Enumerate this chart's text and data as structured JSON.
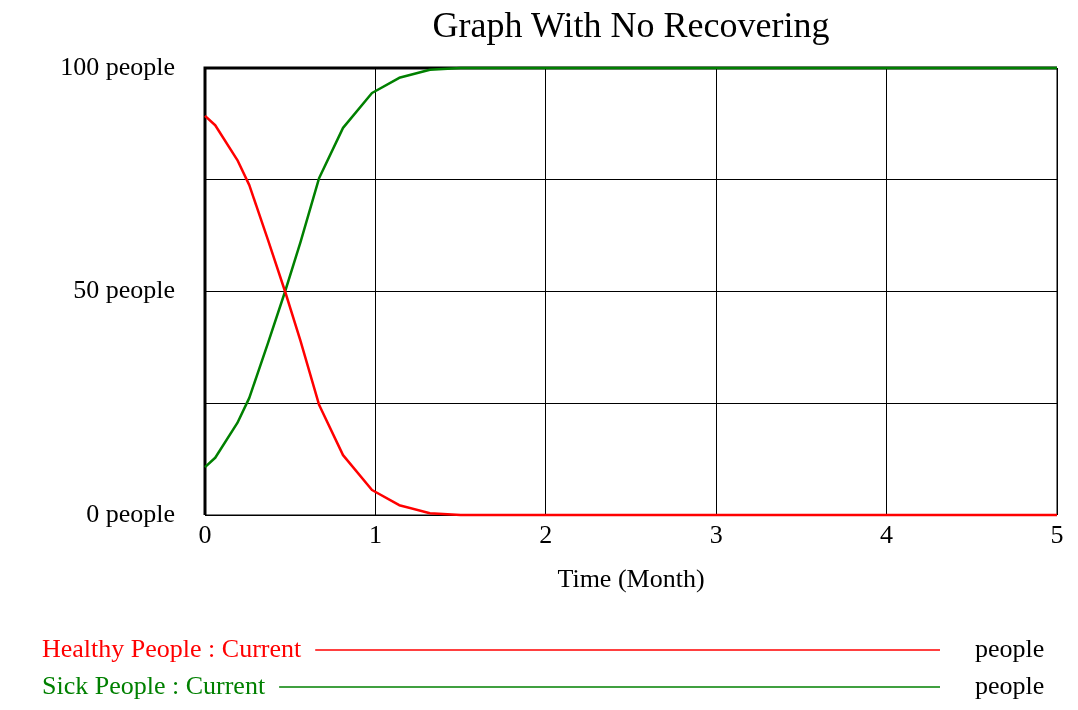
{
  "chart_data": {
    "type": "line",
    "title": "Graph With No Recovering",
    "xlabel": "Time (Month)",
    "x": [
      0,
      0.06,
      0.19,
      0.26,
      0.37,
      0.47,
      0.56,
      0.67,
      0.81,
      0.98,
      1.14,
      1.32,
      1.5,
      2,
      3,
      4,
      5
    ],
    "xlim": [
      0,
      5
    ],
    "xticks": [
      0,
      1,
      2,
      3,
      4,
      5
    ],
    "ylim": [
      0,
      100
    ],
    "yticks": [
      {
        "value": 0,
        "label": "0 people"
      },
      {
        "value": 25,
        "label": null
      },
      {
        "value": 50,
        "label": "50 people"
      },
      {
        "value": 75,
        "label": null
      },
      {
        "value": 100,
        "label": "100 people"
      }
    ],
    "grid": true,
    "legend": "bottom",
    "line_style": "solid",
    "series": [
      {
        "name": "Healthy People : Current",
        "color": "#ff0000",
        "values": [
          89.3,
          87.2,
          79.4,
          73.8,
          61.5,
          50,
          39,
          24.6,
          13.4,
          5.6,
          2.2,
          0.4,
          0,
          0,
          0,
          0,
          0
        ]
      },
      {
        "name": "Sick People : Current",
        "color": "#008000",
        "values": [
          10.7,
          12.8,
          20.6,
          26.2,
          38.5,
          50,
          61,
          75.4,
          86.6,
          94.4,
          97.8,
          99.6,
          100,
          100,
          100,
          100,
          100
        ]
      }
    ],
    "annotations": [
      "people",
      "people"
    ]
  }
}
